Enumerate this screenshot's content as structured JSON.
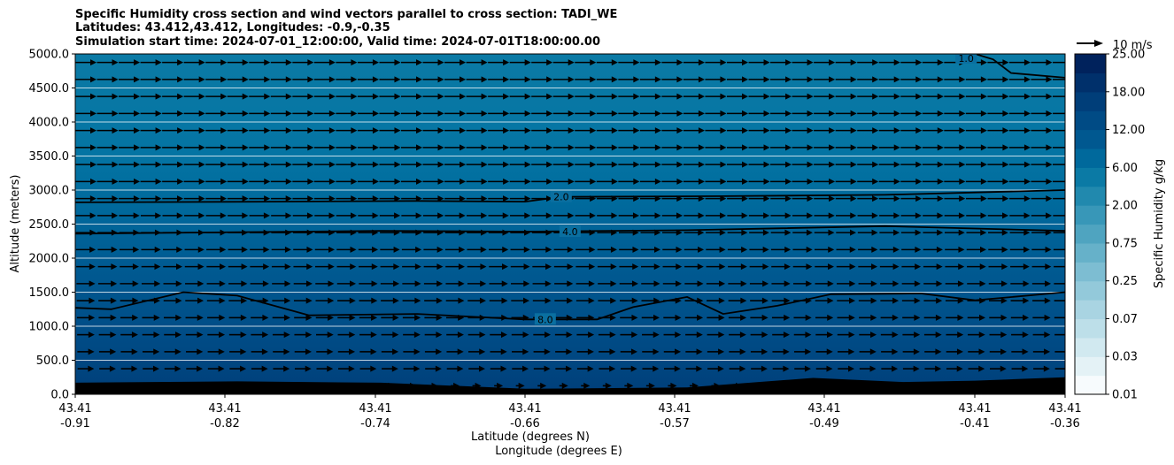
{
  "chart_data": {
    "type": "contour-cross-section",
    "title_lines": [
      "Specific Humidity cross section and wind vectors parallel to cross section: TADI_WE",
      "Latitudes: 43.412,43.412, Longitudes: -0.9,-0.35",
      "Simulation start time: 2024-07-01_12:00:00, Valid time: 2024-07-01T18:00:00.00"
    ],
    "ylabel": "Altitude (meters)",
    "xlabel_lat": "Latitude (degrees N)",
    "xlabel_lon": "Longitude (degrees E)",
    "ylim": [
      0,
      5000
    ],
    "y_ticks": [
      "0.0",
      "500.0",
      "1000.0",
      "1500.0",
      "2000.0",
      "2500.0",
      "3000.0",
      "3500.0",
      "4000.0",
      "4500.0",
      "5000.0"
    ],
    "x_ticks": [
      {
        "lat": "43.41",
        "lon": "-0.91"
      },
      {
        "lat": "43.41",
        "lon": "-0.82"
      },
      {
        "lat": "43.41",
        "lon": "-0.74"
      },
      {
        "lat": "43.41",
        "lon": "-0.66"
      },
      {
        "lat": "43.41",
        "lon": "-0.57"
      },
      {
        "lat": "43.41",
        "lon": "-0.49"
      },
      {
        "lat": "43.41",
        "lon": "-0.41"
      },
      {
        "lat": "43.41",
        "lon": "-0.36"
      }
    ],
    "grid": "horizontal",
    "colorbar": {
      "label": "Specific Humidity g/kg",
      "tick_labels": [
        "0.01",
        "0.03",
        "0.07",
        "0.25",
        "0.75",
        "2.00",
        "6.00",
        "12.00",
        "18.00",
        "25.00"
      ],
      "colors": [
        "#f7fbfd",
        "#e4f2f6",
        "#d1e9f0",
        "#bddfe9",
        "#a9d4e2",
        "#93c9da",
        "#7dbdd2",
        "#66b1c9",
        "#4fa4c0",
        "#3897b8",
        "#2189ae",
        "#0b7aa5",
        "#00699c",
        "#005890",
        "#004b85",
        "#003e79",
        "#00306b",
        "#00225c"
      ]
    },
    "contours": [
      {
        "label": "2.0",
        "points": [
          [
            -0.91,
            2820
          ],
          [
            -0.8,
            2830
          ],
          [
            -0.72,
            2840
          ],
          [
            -0.66,
            2830
          ],
          [
            -0.64,
            2900
          ],
          [
            -0.55,
            2910
          ],
          [
            -0.46,
            2930
          ],
          [
            -0.36,
            3000
          ]
        ]
      },
      {
        "label": "4.0",
        "points": [
          [
            -0.91,
            2360
          ],
          [
            -0.74,
            2400
          ],
          [
            -0.66,
            2390
          ],
          [
            -0.57,
            2410
          ],
          [
            -0.46,
            2470
          ],
          [
            -0.36,
            2400
          ]
        ]
      },
      {
        "label": "8.0",
        "points": [
          [
            -0.91,
            1270
          ],
          [
            -0.89,
            1250
          ],
          [
            -0.85,
            1500
          ],
          [
            -0.82,
            1450
          ],
          [
            -0.78,
            1160
          ],
          [
            -0.72,
            1180
          ],
          [
            -0.66,
            1100
          ],
          [
            -0.62,
            1100
          ],
          [
            -0.6,
            1280
          ],
          [
            -0.57,
            1430
          ],
          [
            -0.55,
            1180
          ],
          [
            -0.52,
            1300
          ],
          [
            -0.49,
            1470
          ],
          [
            -0.44,
            1480
          ],
          [
            -0.41,
            1380
          ],
          [
            -0.36,
            1500
          ]
        ]
      },
      {
        "label": "1.0",
        "points": [
          [
            -0.41,
            5000
          ],
          [
            -0.4,
            4920
          ],
          [
            -0.39,
            4720
          ],
          [
            -0.36,
            4650
          ]
        ]
      }
    ],
    "terrain": [
      [
        -0.91,
        170
      ],
      [
        -0.82,
        190
      ],
      [
        -0.74,
        170
      ],
      [
        -0.66,
        80
      ],
      [
        -0.57,
        100
      ],
      [
        -0.5,
        240
      ],
      [
        -0.45,
        180
      ],
      [
        -0.41,
        200
      ],
      [
        -0.36,
        250
      ]
    ],
    "quiver_key": {
      "label": "10 m/s"
    }
  }
}
